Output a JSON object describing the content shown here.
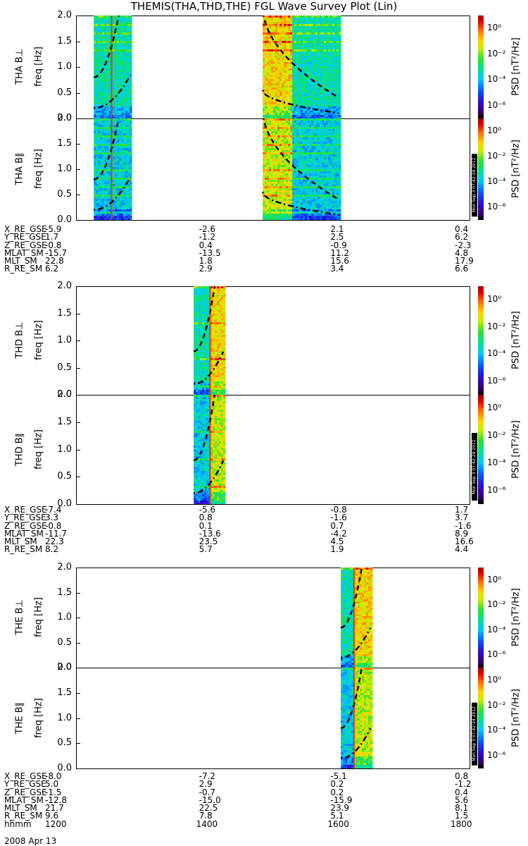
{
  "title": "THEMIS(THA,THD,THE) FGL Wave Survey Plot (Lin)",
  "date": "2008 Apr 13",
  "stamp": "Mon Sep 3 07:42:24 2012",
  "freq_axis": {
    "ylabel": "freq [Hz]",
    "ticks": [
      "0.0",
      "0.5",
      "1.0",
      "1.5",
      "2.0"
    ],
    "range": [
      0,
      2.0
    ]
  },
  "colorbar": {
    "label": "PSD [nT²/Hz]",
    "ticks": [
      "10⁰",
      "10⁻²",
      "10⁻⁴",
      "10⁻⁶"
    ],
    "range": [
      -7,
      1
    ]
  },
  "x_time_range": [
    1200,
    1800
  ],
  "probes": [
    {
      "name": "THA",
      "panels": [
        "THA B⊥",
        "THA B∥"
      ],
      "coverage": [
        [
          1227,
          1283
        ],
        [
          1484,
          1600
        ]
      ],
      "spike_time": 1253,
      "boundary_time": 1528,
      "orbit": [
        {
          "label": "X_RE_GSE",
          "values": [
            "-5.9",
            "-2.6",
            "2.1",
            "0.4"
          ]
        },
        {
          "label": "Y_RE_GSE",
          "values": [
            "1.7",
            "-1.2",
            "2.5",
            "6.2"
          ]
        },
        {
          "label": "Z_RE_GSE",
          "values": [
            "-0.8",
            "0.4",
            "-0.9",
            "-2.3"
          ]
        },
        {
          "label": "MLAT_SM",
          "values": [
            "-15.7",
            "-13.5",
            "11.2",
            "4.8"
          ]
        },
        {
          "label": "MLT_SM",
          "values": [
            "22.8",
            "1.8",
            "15.6",
            "17.9"
          ]
        },
        {
          "label": "R_RE_SM",
          "values": [
            "6.2",
            "2.9",
            "3.4",
            "6.6"
          ]
        }
      ]
    },
    {
      "name": "THD",
      "panels": [
        "THD B⊥",
        "THD B∥"
      ],
      "coverage": [
        [
          1379,
          1426
        ]
      ],
      "spike_time": 1403,
      "boundary_time": 1403,
      "orbit": [
        {
          "label": "X_RE_GSE",
          "values": [
            "-7.4",
            "-5.6",
            "-0.8",
            "1.7"
          ]
        },
        {
          "label": "Y_RE_GSE",
          "values": [
            "3.3",
            "0.8",
            "-1.6",
            "3.7"
          ]
        },
        {
          "label": "Z_RE_GSE",
          "values": [
            "-0.8",
            "0.1",
            "0.7",
            "-1.6"
          ]
        },
        {
          "label": "MLAT_SM",
          "values": [
            "-11.7",
            "-13.6",
            "-4.2",
            "8.9"
          ]
        },
        {
          "label": "MLT_SM",
          "values": [
            "22.3",
            "23.5",
            "4.5",
            "16.6"
          ]
        },
        {
          "label": "R_RE_SM",
          "values": [
            "8.2",
            "5.7",
            "1.9",
            "4.4"
          ]
        }
      ]
    },
    {
      "name": "THE",
      "panels": [
        "THE B⊥",
        "THE B∥"
      ],
      "coverage": [
        [
          1603,
          1650
        ]
      ],
      "spike_time": 1622,
      "boundary_time": 1622,
      "orbit": [
        {
          "label": "X_RE_GSE",
          "values": [
            "-8.0",
            "-7.2",
            "-5.1",
            "0.8"
          ]
        },
        {
          "label": "Y_RE_GSE",
          "values": [
            "5.0",
            "2.9",
            "0.2",
            "-1.2"
          ]
        },
        {
          "label": "Z_RE_GSE",
          "values": [
            "-1.5",
            "-0.7",
            "0.2",
            "0.4"
          ]
        },
        {
          "label": "MLAT_SM",
          "values": [
            "-12.8",
            "-15.0",
            "-15.9",
            "5.6"
          ]
        },
        {
          "label": "MLT_SM",
          "values": [
            "21.7",
            "22.5",
            "23.9",
            "8.1"
          ]
        },
        {
          "label": "R_RE_SM",
          "values": [
            "9.6",
            "7.8",
            "5.1",
            "1.5"
          ]
        }
      ]
    }
  ],
  "time_axis": {
    "label": "hhmm",
    "ticks": [
      "1200",
      "1400",
      "1600",
      "1800"
    ]
  },
  "chart_data": {
    "type": "heatmap",
    "title": "THEMIS(THA,THD,THE) FGL Wave Survey Plot (Lin)",
    "x": [
      1200,
      1800
    ],
    "ylabel": "freq [Hz]",
    "ylim": [
      0,
      2.0
    ],
    "colorbar_label": "PSD [nT²/Hz]",
    "colorbar_range_log10": [
      -7,
      1
    ]
  }
}
